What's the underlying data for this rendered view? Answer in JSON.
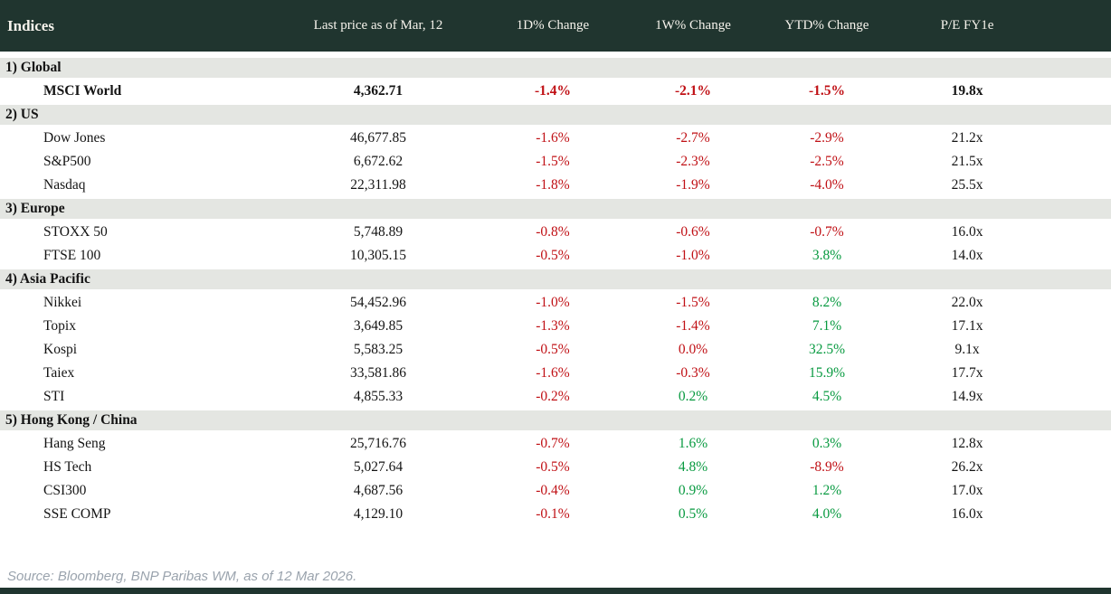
{
  "table": {
    "columns": {
      "indices": "Indices",
      "last_price": "Last price as of Mar, 12",
      "d1": "1D% Change",
      "w1": "1W% Change",
      "ytd": "YTD% Change",
      "pe": "P/E FY1e"
    },
    "sections": [
      {
        "label": "1) Global",
        "rows": [
          {
            "name": "MSCI World",
            "emphasis": true,
            "price": "4,362.71",
            "changes": [
              {
                "v": "-1.4%",
                "t": "neg"
              },
              {
                "v": "-2.1%",
                "t": "neg"
              },
              {
                "v": "-1.5%",
                "t": "neg"
              }
            ],
            "pe": "19.8x"
          }
        ]
      },
      {
        "label": "2) US",
        "rows": [
          {
            "name": "Dow Jones",
            "emphasis": false,
            "price": "46,677.85",
            "changes": [
              {
                "v": "-1.6%",
                "t": "neg"
              },
              {
                "v": "-2.7%",
                "t": "neg"
              },
              {
                "v": "-2.9%",
                "t": "neg"
              }
            ],
            "pe": "21.2x"
          },
          {
            "name": "S&P500",
            "emphasis": false,
            "price": "6,672.62",
            "changes": [
              {
                "v": "-1.5%",
                "t": "neg"
              },
              {
                "v": "-2.3%",
                "t": "neg"
              },
              {
                "v": "-2.5%",
                "t": "neg"
              }
            ],
            "pe": "21.5x"
          },
          {
            "name": "Nasdaq",
            "emphasis": false,
            "price": "22,311.98",
            "changes": [
              {
                "v": "-1.8%",
                "t": "neg"
              },
              {
                "v": "-1.9%",
                "t": "neg"
              },
              {
                "v": "-4.0%",
                "t": "neg"
              }
            ],
            "pe": "25.5x"
          }
        ]
      },
      {
        "label": "3) Europe",
        "rows": [
          {
            "name": "STOXX 50",
            "emphasis": false,
            "price": "5,748.89",
            "changes": [
              {
                "v": "-0.8%",
                "t": "neg"
              },
              {
                "v": "-0.6%",
                "t": "neg"
              },
              {
                "v": "-0.7%",
                "t": "neg"
              }
            ],
            "pe": "16.0x"
          },
          {
            "name": "FTSE 100",
            "emphasis": false,
            "price": "10,305.15",
            "changes": [
              {
                "v": "-0.5%",
                "t": "neg"
              },
              {
                "v": "-1.0%",
                "t": "neg"
              },
              {
                "v": "3.8%",
                "t": "pos"
              }
            ],
            "pe": "14.0x"
          }
        ]
      },
      {
        "label": "4) Asia Pacific",
        "rows": [
          {
            "name": "Nikkei",
            "emphasis": false,
            "price": "54,452.96",
            "changes": [
              {
                "v": "-1.0%",
                "t": "neg"
              },
              {
                "v": "-1.5%",
                "t": "neg"
              },
              {
                "v": "8.2%",
                "t": "pos"
              }
            ],
            "pe": "22.0x"
          },
          {
            "name": "Topix",
            "emphasis": false,
            "price": "3,649.85",
            "changes": [
              {
                "v": "-1.3%",
                "t": "neg"
              },
              {
                "v": "-1.4%",
                "t": "neg"
              },
              {
                "v": "7.1%",
                "t": "pos"
              }
            ],
            "pe": "17.1x"
          },
          {
            "name": "Kospi",
            "emphasis": false,
            "price": "5,583.25",
            "changes": [
              {
                "v": "-0.5%",
                "t": "neg"
              },
              {
                "v": "0.0%",
                "t": "neg"
              },
              {
                "v": "32.5%",
                "t": "pos"
              }
            ],
            "pe": "9.1x"
          },
          {
            "name": "Taiex",
            "emphasis": false,
            "price": "33,581.86",
            "changes": [
              {
                "v": "-1.6%",
                "t": "neg"
              },
              {
                "v": "-0.3%",
                "t": "neg"
              },
              {
                "v": "15.9%",
                "t": "pos"
              }
            ],
            "pe": "17.7x"
          },
          {
            "name": "STI",
            "emphasis": false,
            "price": "4,855.33",
            "changes": [
              {
                "v": "-0.2%",
                "t": "neg"
              },
              {
                "v": "0.2%",
                "t": "pos"
              },
              {
                "v": "4.5%",
                "t": "pos"
              }
            ],
            "pe": "14.9x"
          }
        ]
      },
      {
        "label": "5) Hong Kong / China",
        "rows": [
          {
            "name": "Hang Seng",
            "emphasis": false,
            "price": "25,716.76",
            "changes": [
              {
                "v": "-0.7%",
                "t": "neg"
              },
              {
                "v": "1.6%",
                "t": "pos"
              },
              {
                "v": "0.3%",
                "t": "pos"
              }
            ],
            "pe": "12.8x"
          },
          {
            "name": "HS Tech",
            "emphasis": false,
            "price": "5,027.64",
            "changes": [
              {
                "v": "-0.5%",
                "t": "neg"
              },
              {
                "v": "4.8%",
                "t": "pos"
              },
              {
                "v": "-8.9%",
                "t": "neg"
              }
            ],
            "pe": "26.2x"
          },
          {
            "name": "CSI300",
            "emphasis": false,
            "price": "4,687.56",
            "changes": [
              {
                "v": "-0.4%",
                "t": "neg"
              },
              {
                "v": "0.9%",
                "t": "pos"
              },
              {
                "v": "1.2%",
                "t": "pos"
              }
            ],
            "pe": "17.0x"
          },
          {
            "name": "SSE COMP",
            "emphasis": false,
            "price": "4,129.10",
            "changes": [
              {
                "v": "-0.1%",
                "t": "neg"
              },
              {
                "v": "0.5%",
                "t": "pos"
              },
              {
                "v": "4.0%",
                "t": "pos"
              }
            ],
            "pe": "16.0x"
          }
        ]
      }
    ]
  },
  "footer": {
    "source": "Source: Bloomberg, BNP Paribas WM, as of 12 Mar 2026."
  },
  "colors": {
    "header_bg": "#20352f",
    "header_text": "#f6f3ec",
    "section_bg": "#e4e6e2",
    "negative": "#c01015",
    "positive": "#089a40",
    "source_text": "#9aa3ad"
  }
}
